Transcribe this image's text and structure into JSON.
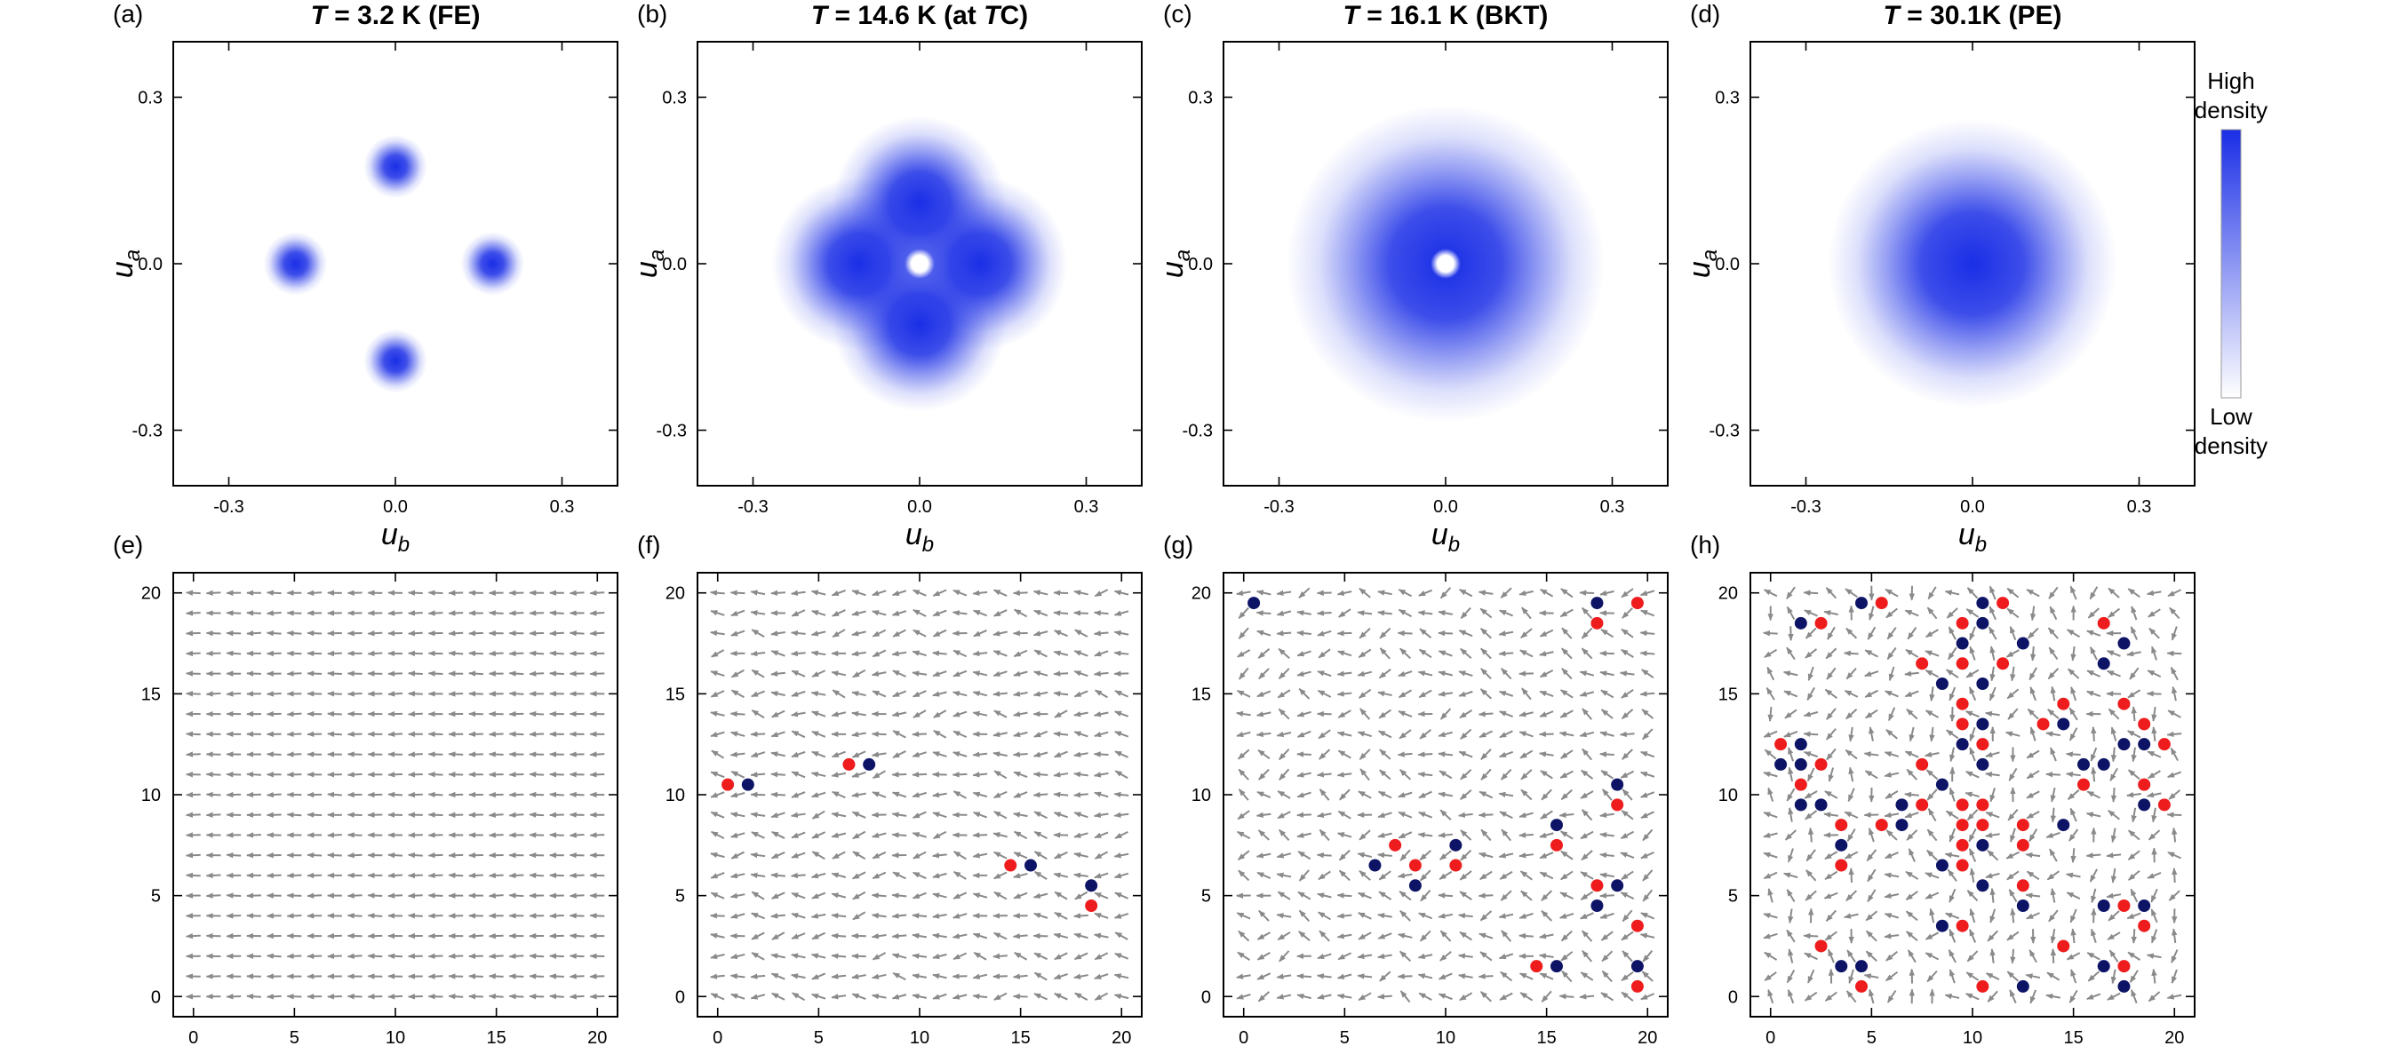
{
  "colors": {
    "density": "#1a2ee6",
    "positive_vortex": "#ee1c1c",
    "negative_vortex": "#0d1466",
    "arrow": "#8a8a8a"
  },
  "colorbar": {
    "high_label_1": "High",
    "high_label_2": "density",
    "low_label_1": "Low",
    "low_label_2": "density"
  },
  "chart_data": [
    {
      "panel": "(a)",
      "type": "heatmap",
      "title": "T = 3.2 K (FE)",
      "title_var": "T",
      "title_rest": " = 3.2 K (FE)",
      "xlabel": "u",
      "xlabel_sub": "b",
      "ylabel": "u",
      "ylabel_sub": "a",
      "xlim": [
        -0.4,
        0.4
      ],
      "ylim": [
        -0.4,
        0.4
      ],
      "xticks": [
        "-0.3",
        "0.0",
        "0.3"
      ],
      "yticks": [
        "-0.3",
        "0.0",
        "0.3"
      ],
      "blobs": [
        {
          "u_b": 0.0,
          "u_a": 0.175,
          "sigma": 0.022,
          "hole": 0
        },
        {
          "u_b": -0.18,
          "u_a": 0.0,
          "sigma": 0.022,
          "hole": 0
        },
        {
          "u_b": 0.175,
          "u_a": 0.0,
          "sigma": 0.022,
          "hole": 0
        },
        {
          "u_b": 0.0,
          "u_a": -0.175,
          "sigma": 0.022,
          "hole": 0
        }
      ]
    },
    {
      "panel": "(b)",
      "type": "heatmap",
      "title": "T = 14.6 K (at Tc)",
      "title_var": "T",
      "title_rest": " = 14.6 K (at ",
      "title_var2": "T",
      "title_sub2": "C",
      "title_end": ")",
      "xlabel": "u",
      "xlabel_sub": "b",
      "ylabel": "u",
      "ylabel_sub": "a",
      "xlim": [
        -0.4,
        0.4
      ],
      "ylim": [
        -0.4,
        0.4
      ],
      "xticks": [
        "-0.3",
        "0.0",
        "0.3"
      ],
      "yticks": [
        "-0.3",
        "0.0",
        "0.3"
      ],
      "blobs": [
        {
          "u_b": 0.0,
          "u_a": 0.11,
          "sigma": 0.06,
          "hole": 0
        },
        {
          "u_b": -0.11,
          "u_a": 0.0,
          "sigma": 0.06,
          "hole": 0
        },
        {
          "u_b": 0.11,
          "u_a": 0.0,
          "sigma": 0.06,
          "hole": 0
        },
        {
          "u_b": 0.0,
          "u_a": -0.11,
          "sigma": 0.06,
          "hole": 0.03
        }
      ]
    },
    {
      "panel": "(c)",
      "type": "heatmap",
      "title": "T = 16.1 K (BKT)",
      "title_var": "T",
      "title_rest": " = 16.1 K (BKT)",
      "xlabel": "u",
      "xlabel_sub": "b",
      "ylabel": "u",
      "ylabel_sub": "a",
      "xlim": [
        -0.4,
        0.4
      ],
      "ylim": [
        -0.4,
        0.4
      ],
      "xticks": [
        "-0.3",
        "0.0",
        "0.3"
      ],
      "yticks": [
        "-0.3",
        "0.0",
        "0.3"
      ],
      "blobs": [
        {
          "u_b": 0.0,
          "u_a": 0.0,
          "sigma": 0.11,
          "hole": 0.03
        }
      ]
    },
    {
      "panel": "(d)",
      "type": "heatmap",
      "title": "T = 30.1K (PE)",
      "title_var": "T",
      "title_rest": " = 30.1K (PE)",
      "xlabel": "u",
      "xlabel_sub": "b",
      "ylabel": "u",
      "ylabel_sub": "a",
      "xlim": [
        -0.4,
        0.4
      ],
      "ylim": [
        -0.4,
        0.4
      ],
      "xticks": [
        "-0.3",
        "0.0",
        "0.3"
      ],
      "yticks": [
        "-0.3",
        "0.0",
        "0.3"
      ],
      "blobs": [
        {
          "u_b": 0.0,
          "u_a": 0.0,
          "sigma": 0.1,
          "hole": 0
        }
      ]
    },
    {
      "panel": "(e)",
      "type": "scatter",
      "xlim": [
        -1,
        21
      ],
      "ylim": [
        -1,
        21
      ],
      "xticks": [
        "0",
        "5",
        "10",
        "15",
        "20"
      ],
      "yticks": [
        "0",
        "5",
        "10",
        "15",
        "20"
      ],
      "lattice_size": 21,
      "disorder": 0.06,
      "positive": [],
      "negative": []
    },
    {
      "panel": "(f)",
      "type": "scatter",
      "xlim": [
        -1,
        21
      ],
      "ylim": [
        -1,
        21
      ],
      "xticks": [
        "0",
        "5",
        "10",
        "15",
        "20"
      ],
      "yticks": [
        "0",
        "5",
        "10",
        "15",
        "20"
      ],
      "lattice_size": 21,
      "disorder": 0.55,
      "positive": [
        [
          0.5,
          10.5
        ],
        [
          6.5,
          11.5
        ],
        [
          14.5,
          6.5
        ],
        [
          18.5,
          4.5
        ]
      ],
      "negative": [
        [
          1.5,
          10.5
        ],
        [
          7.5,
          11.5
        ],
        [
          15.5,
          6.5
        ],
        [
          18.5,
          5.5
        ]
      ]
    },
    {
      "panel": "(g)",
      "type": "scatter",
      "xlim": [
        -1,
        21
      ],
      "ylim": [
        -1,
        21
      ],
      "xticks": [
        "0",
        "5",
        "10",
        "15",
        "20"
      ],
      "yticks": [
        "0",
        "5",
        "10",
        "15",
        "20"
      ],
      "lattice_size": 21,
      "disorder": 0.9,
      "positive": [
        [
          7.5,
          7.5
        ],
        [
          8.5,
          6.5
        ],
        [
          10.5,
          6.5
        ],
        [
          14.5,
          1.5
        ],
        [
          15.5,
          7.5
        ],
        [
          17.5,
          18.5
        ],
        [
          17.5,
          5.5
        ],
        [
          18.5,
          9.5
        ],
        [
          19.5,
          19.5
        ],
        [
          19.5,
          3.5
        ],
        [
          19.5,
          0.5
        ]
      ],
      "negative": [
        [
          0.5,
          19.5
        ],
        [
          6.5,
          6.5
        ],
        [
          8.5,
          5.5
        ],
        [
          10.5,
          7.5
        ],
        [
          15.5,
          1.5
        ],
        [
          15.5,
          8.5
        ],
        [
          17.5,
          19.5
        ],
        [
          17.5,
          4.5
        ],
        [
          18.5,
          10.5
        ],
        [
          18.5,
          5.5
        ],
        [
          19.5,
          1.5
        ]
      ]
    },
    {
      "panel": "(h)",
      "type": "scatter",
      "xlim": [
        -1,
        21
      ],
      "ylim": [
        -1,
        21
      ],
      "xticks": [
        "0",
        "5",
        "10",
        "15",
        "20"
      ],
      "yticks": [
        "0",
        "5",
        "10",
        "15",
        "20"
      ],
      "lattice_size": 21,
      "disorder": 1.6,
      "positive": [
        [
          0.5,
          12.5
        ],
        [
          1.5,
          10.5
        ],
        [
          2.5,
          18.5
        ],
        [
          2.5,
          11.5
        ],
        [
          3.5,
          8.5
        ],
        [
          3.5,
          6.5
        ],
        [
          2.5,
          2.5
        ],
        [
          4.5,
          0.5
        ],
        [
          5.5,
          19.5
        ],
        [
          5.5,
          8.5
        ],
        [
          7.5,
          16.5
        ],
        [
          7.5,
          11.5
        ],
        [
          7.5,
          9.5
        ],
        [
          9.5,
          18.5
        ],
        [
          9.5,
          16.5
        ],
        [
          9.5,
          14.5
        ],
        [
          9.5,
          13.5
        ],
        [
          9.5,
          9.5
        ],
        [
          9.5,
          8.5
        ],
        [
          9.5,
          7.5
        ],
        [
          9.5,
          6.5
        ],
        [
          9.5,
          3.5
        ],
        [
          10.5,
          12.5
        ],
        [
          10.5,
          9.5
        ],
        [
          10.5,
          8.5
        ],
        [
          10.5,
          0.5
        ],
        [
          11.5,
          19.5
        ],
        [
          11.5,
          16.5
        ],
        [
          12.5,
          8.5
        ],
        [
          12.5,
          7.5
        ],
        [
          12.5,
          5.5
        ],
        [
          13.5,
          13.5
        ],
        [
          14.5,
          14.5
        ],
        [
          14.5,
          2.5
        ],
        [
          15.5,
          10.5
        ],
        [
          16.5,
          18.5
        ],
        [
          17.5,
          14.5
        ],
        [
          17.5,
          4.5
        ],
        [
          17.5,
          1.5
        ],
        [
          18.5,
          13.5
        ],
        [
          18.5,
          10.5
        ],
        [
          18.5,
          3.5
        ],
        [
          19.5,
          12.5
        ],
        [
          19.5,
          9.5
        ]
      ],
      "negative": [
        [
          0.5,
          11.5
        ],
        [
          1.5,
          18.5
        ],
        [
          1.5,
          12.5
        ],
        [
          1.5,
          11.5
        ],
        [
          1.5,
          9.5
        ],
        [
          2.5,
          9.5
        ],
        [
          3.5,
          7.5
        ],
        [
          3.5,
          1.5
        ],
        [
          4.5,
          19.5
        ],
        [
          4.5,
          1.5
        ],
        [
          6.5,
          9.5
        ],
        [
          6.5,
          8.5
        ],
        [
          8.5,
          15.5
        ],
        [
          8.5,
          10.5
        ],
        [
          8.5,
          6.5
        ],
        [
          8.5,
          3.5
        ],
        [
          9.5,
          17.5
        ],
        [
          9.5,
          12.5
        ],
        [
          10.5,
          19.5
        ],
        [
          10.5,
          18.5
        ],
        [
          10.5,
          15.5
        ],
        [
          10.5,
          13.5
        ],
        [
          10.5,
          11.5
        ],
        [
          10.5,
          7.5
        ],
        [
          10.5,
          5.5
        ],
        [
          12.5,
          17.5
        ],
        [
          12.5,
          4.5
        ],
        [
          12.5,
          0.5
        ],
        [
          14.5,
          13.5
        ],
        [
          14.5,
          8.5
        ],
        [
          15.5,
          11.5
        ],
        [
          16.5,
          16.5
        ],
        [
          16.5,
          11.5
        ],
        [
          16.5,
          4.5
        ],
        [
          16.5,
          1.5
        ],
        [
          17.5,
          17.5
        ],
        [
          17.5,
          12.5
        ],
        [
          17.5,
          0.5
        ],
        [
          18.5,
          12.5
        ],
        [
          18.5,
          9.5
        ],
        [
          18.5,
          4.5
        ]
      ]
    }
  ]
}
